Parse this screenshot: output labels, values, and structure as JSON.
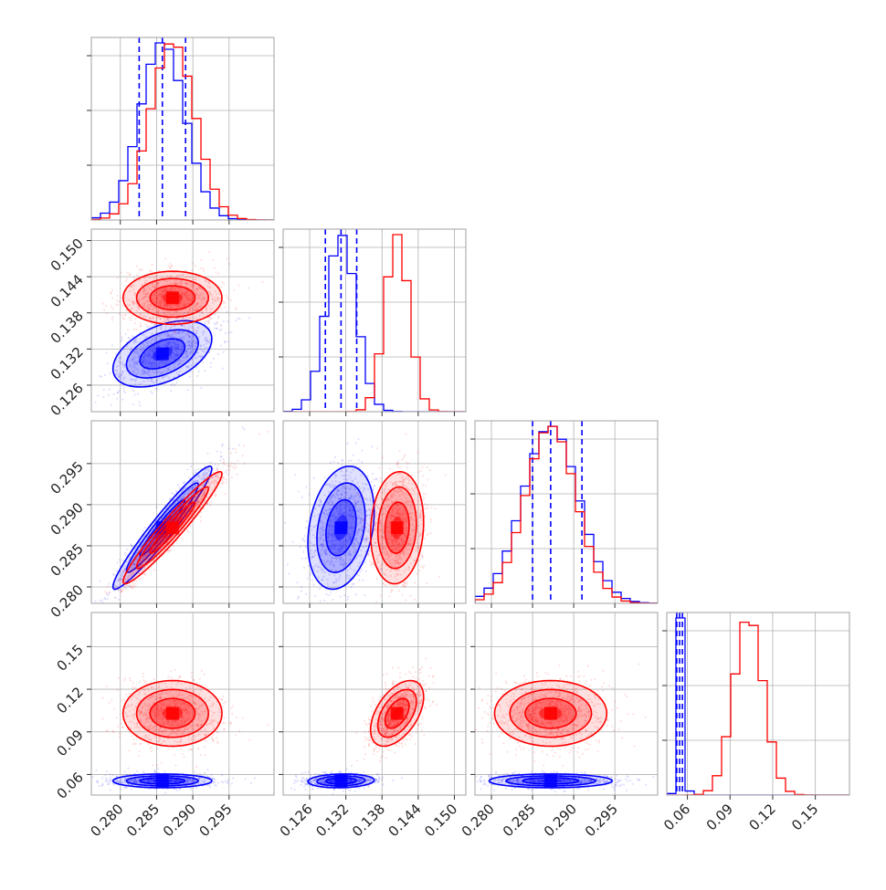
{
  "chart_data": {
    "type": "corner",
    "colors": {
      "set_a": "#0000ff",
      "set_b": "#ff0000",
      "grid": "#b0b0b0"
    },
    "parameters": [
      {
        "range": [
          0.276,
          0.3012
        ],
        "ticks": [
          0.28,
          0.285,
          0.29,
          0.295
        ],
        "tick_labels": [
          "0.280",
          "0.285",
          "0.290",
          "0.295"
        ]
      },
      {
        "range": [
          0.1216,
          0.1519
        ],
        "ticks": [
          0.126,
          0.132,
          0.138,
          0.144,
          0.15
        ],
        "tick_labels": [
          "0.126",
          "0.132",
          "0.138",
          "0.144",
          "0.150"
        ]
      },
      {
        "range": [
          0.278,
          0.3002
        ],
        "ticks": [
          0.28,
          0.285,
          0.29,
          0.295
        ],
        "tick_labels": [
          "0.280",
          "0.285",
          "0.290",
          "0.295"
        ]
      },
      {
        "range": [
          0.0455,
          0.174
        ],
        "ticks": [
          0.06,
          0.09,
          0.12,
          0.15
        ],
        "tick_labels": [
          "0.06",
          "0.09",
          "0.12",
          "0.15"
        ]
      }
    ],
    "series": [
      {
        "color": "#0000ff",
        "means": [
          0.2858,
          0.1312,
          0.2872,
          0.0555
        ],
        "sigmas": [
          0.0031,
          0.0025,
          0.0034,
          0.0022
        ],
        "quantiles": [
          [
            0.2826,
            0.2858,
            0.289
          ],
          [
            0.1286,
            0.1312,
            0.1338
          ],
          [
            0.285,
            0.2872,
            0.291
          ],
          [
            0.0525,
            0.0545,
            0.0565
          ]
        ],
        "correlations": [
          [
            0,
            1,
            0.45
          ],
          [
            0,
            2,
            0.96
          ],
          [
            1,
            2,
            0.25
          ],
          [
            0,
            3,
            0.0
          ],
          [
            1,
            3,
            0.1
          ],
          [
            2,
            3,
            0.0
          ]
        ]
      },
      {
        "color": "#ff0000",
        "means": [
          0.2872,
          0.1405,
          0.2872,
          0.103
        ],
        "sigmas": [
          0.0031,
          0.002,
          0.0031,
          0.0105
        ],
        "quantiles": null,
        "correlations": [
          [
            0,
            1,
            0.0
          ],
          [
            0,
            2,
            0.96
          ],
          [
            1,
            2,
            0.1
          ],
          [
            0,
            3,
            0.0
          ],
          [
            1,
            3,
            0.5
          ],
          [
            2,
            3,
            0.0
          ]
        ]
      }
    ]
  }
}
